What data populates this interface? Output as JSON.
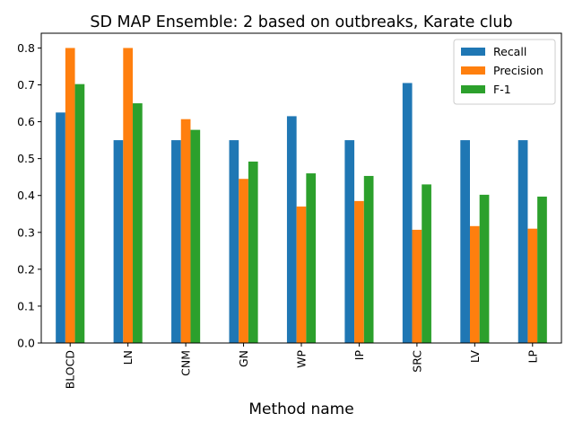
{
  "chart_data": {
    "type": "bar",
    "title": "SD MAP Ensemble: 2 based on outbreaks, Karate club",
    "xlabel": "Method name",
    "ylabel": "",
    "categories": [
      "BLOCD",
      "LN",
      "CNM",
      "GN",
      "WP",
      "IP",
      "SRC",
      "LV",
      "LP"
    ],
    "series": [
      {
        "name": "Recall",
        "color": "#1f77b4",
        "values": [
          0.625,
          0.55,
          0.55,
          0.55,
          0.615,
          0.55,
          0.705,
          0.55,
          0.55
        ]
      },
      {
        "name": "Precision",
        "color": "#ff7f0e",
        "values": [
          0.8,
          0.8,
          0.607,
          0.445,
          0.37,
          0.385,
          0.307,
          0.317,
          0.31
        ]
      },
      {
        "name": "F-1",
        "color": "#2ca02c",
        "values": [
          0.702,
          0.65,
          0.578,
          0.492,
          0.46,
          0.453,
          0.43,
          0.402,
          0.397
        ]
      }
    ],
    "ylim": [
      0,
      0.84
    ],
    "yticks": [
      "0.0",
      "0.1",
      "0.2",
      "0.3",
      "0.4",
      "0.5",
      "0.6",
      "0.7",
      "0.8"
    ],
    "grid": false,
    "legend_position": "top-right"
  }
}
